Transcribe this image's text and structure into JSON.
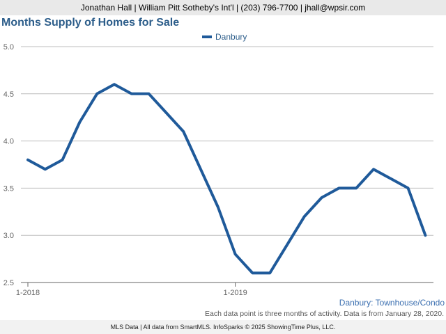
{
  "header": {
    "contact": "Jonathan Hall | William Pitt Sotheby's Int'l | (203) 796-7700 | jhall@wpsir.com"
  },
  "chart_data": {
    "type": "line",
    "title": "Months Supply of Homes for Sale",
    "subtitle": "Danbury: Townhouse/Condo",
    "x": [
      "1-2018",
      "2-2018",
      "3-2018",
      "4-2018",
      "5-2018",
      "6-2018",
      "7-2018",
      "8-2018",
      "9-2018",
      "10-2018",
      "11-2018",
      "12-2018",
      "1-2019",
      "2-2019",
      "3-2019",
      "4-2019",
      "5-2019",
      "6-2019",
      "7-2019",
      "8-2019",
      "9-2019",
      "10-2019",
      "11-2019",
      "12-2019"
    ],
    "x_tick_labels": [
      "1-2018",
      "1-2019"
    ],
    "series": [
      {
        "name": "Danbury",
        "color": "#1f5a9a",
        "values": [
          3.8,
          3.7,
          3.8,
          4.2,
          4.5,
          4.6,
          4.5,
          4.5,
          4.3,
          4.1,
          3.7,
          3.3,
          2.8,
          2.6,
          2.6,
          2.9,
          3.2,
          3.4,
          3.5,
          3.5,
          3.7,
          3.6,
          3.5,
          3.0
        ]
      }
    ],
    "ylim": [
      2.5,
      5.0
    ],
    "y_ticks": [
      "2.5",
      "3.0",
      "3.5",
      "4.0",
      "4.5",
      "5.0"
    ],
    "grid": true,
    "legend_position": "top-center"
  },
  "footnote": "Each data point is three months of activity. Data is from January 28, 2020.",
  "footer": "MLS Data | All data from SmartMLS. InfoSparks © 2025 ShowingTime Plus, LLC."
}
